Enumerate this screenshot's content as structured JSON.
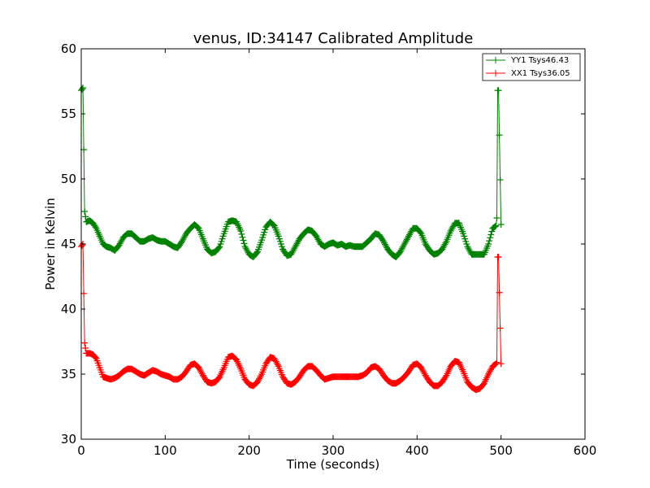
{
  "chart_data": {
    "type": "line",
    "title": "venus, ID:34147 Calibrated Amplitude",
    "xlabel": "Time (seconds)",
    "ylabel": "Power in Kelvin",
    "xlim": [
      0,
      600
    ],
    "ylim": [
      30,
      60
    ],
    "xticks": [
      0,
      100,
      200,
      300,
      400,
      500,
      600
    ],
    "yticks": [
      30,
      35,
      40,
      45,
      50,
      55,
      60
    ],
    "grid": false,
    "legend_position": "top-right",
    "series": [
      {
        "name": "YY1 Tsys46.43",
        "color": "#008000",
        "marker": "+",
        "x": [
          0,
          2,
          4,
          6,
          10,
          14,
          18,
          22,
          26,
          30,
          35,
          40,
          45,
          50,
          55,
          60,
          65,
          70,
          75,
          80,
          85,
          90,
          95,
          100,
          105,
          110,
          115,
          120,
          125,
          130,
          135,
          140,
          145,
          150,
          155,
          160,
          165,
          170,
          175,
          180,
          185,
          190,
          195,
          200,
          205,
          210,
          215,
          220,
          225,
          230,
          235,
          240,
          245,
          250,
          255,
          260,
          265,
          270,
          275,
          280,
          285,
          290,
          295,
          300,
          305,
          310,
          315,
          320,
          325,
          330,
          335,
          340,
          345,
          350,
          355,
          360,
          365,
          370,
          375,
          380,
          385,
          390,
          395,
          400,
          405,
          410,
          415,
          420,
          425,
          430,
          435,
          440,
          445,
          450,
          455,
          460,
          465,
          470,
          475,
          480,
          485,
          490,
          494,
          495,
          496,
          497,
          500
        ],
        "y": [
          56.8,
          57.0,
          47.5,
          46.7,
          46.8,
          46.6,
          46.2,
          45.6,
          45.0,
          44.8,
          44.7,
          44.5,
          44.9,
          45.5,
          45.8,
          45.8,
          45.5,
          45.2,
          45.2,
          45.4,
          45.5,
          45.3,
          45.2,
          45.2,
          45.0,
          44.8,
          44.7,
          45.2,
          45.8,
          46.2,
          46.5,
          46.2,
          45.4,
          44.6,
          44.3,
          44.4,
          44.8,
          45.8,
          46.7,
          46.8,
          46.7,
          46.0,
          44.8,
          44.2,
          44.0,
          44.4,
          45.3,
          46.3,
          46.7,
          46.4,
          45.6,
          44.6,
          44.1,
          44.2,
          44.8,
          45.4,
          45.8,
          46.1,
          46.0,
          45.6,
          45.0,
          44.8,
          45.0,
          45.1,
          44.9,
          45.0,
          44.8,
          44.9,
          44.8,
          44.8,
          44.8,
          45.1,
          45.4,
          45.8,
          45.7,
          45.2,
          44.6,
          44.2,
          44.0,
          44.4,
          45.0,
          45.6,
          46.2,
          46.2,
          45.8,
          45.0,
          44.5,
          44.2,
          44.3,
          44.6,
          45.2,
          46.0,
          46.6,
          46.6,
          45.8,
          44.8,
          44.2,
          44.2,
          44.2,
          44.2,
          45.0,
          46.2,
          46.4,
          47.0,
          56.8,
          56.8,
          46.5
        ]
      },
      {
        "name": "XX1 Tsys36.05",
        "color": "#ff0000",
        "marker": "+",
        "x": [
          0,
          2,
          4,
          6,
          10,
          14,
          18,
          22,
          26,
          30,
          35,
          40,
          45,
          50,
          55,
          60,
          65,
          70,
          75,
          80,
          85,
          90,
          95,
          100,
          105,
          110,
          115,
          120,
          125,
          130,
          135,
          140,
          145,
          150,
          155,
          160,
          165,
          170,
          175,
          180,
          185,
          190,
          195,
          200,
          205,
          210,
          215,
          220,
          225,
          230,
          235,
          240,
          245,
          250,
          255,
          260,
          265,
          270,
          275,
          280,
          285,
          290,
          295,
          300,
          305,
          310,
          315,
          320,
          325,
          330,
          335,
          340,
          345,
          350,
          355,
          360,
          365,
          370,
          375,
          380,
          385,
          390,
          395,
          400,
          405,
          410,
          415,
          420,
          425,
          430,
          435,
          440,
          445,
          450,
          455,
          460,
          465,
          470,
          475,
          480,
          485,
          490,
          494,
          495,
          496,
          497,
          500
        ],
        "y": [
          44.8,
          45.0,
          37.4,
          36.6,
          36.6,
          36.5,
          36.2,
          35.5,
          34.8,
          34.7,
          34.6,
          34.7,
          34.9,
          35.2,
          35.4,
          35.4,
          35.2,
          35.0,
          34.9,
          35.1,
          35.3,
          35.2,
          35.0,
          34.9,
          34.8,
          34.6,
          34.6,
          34.8,
          35.2,
          35.7,
          35.8,
          35.5,
          34.9,
          34.4,
          34.3,
          34.4,
          34.8,
          35.5,
          36.3,
          36.4,
          36.1,
          35.4,
          34.6,
          34.2,
          34.1,
          34.4,
          35.0,
          35.8,
          36.3,
          36.2,
          35.6,
          34.8,
          34.3,
          34.2,
          34.4,
          34.8,
          35.3,
          35.6,
          35.6,
          35.3,
          34.9,
          34.6,
          34.7,
          34.8,
          34.8,
          34.8,
          34.8,
          34.8,
          34.8,
          34.8,
          34.9,
          35.1,
          35.5,
          35.6,
          35.4,
          34.9,
          34.5,
          34.3,
          34.3,
          34.5,
          34.8,
          35.2,
          35.7,
          35.8,
          35.5,
          34.9,
          34.4,
          34.1,
          34.1,
          34.4,
          34.9,
          35.6,
          36.0,
          35.9,
          35.2,
          34.4,
          34.0,
          33.8,
          33.9,
          34.3,
          35.0,
          35.6,
          35.8,
          35.9,
          44.0,
          44.0,
          35.8
        ]
      }
    ]
  }
}
